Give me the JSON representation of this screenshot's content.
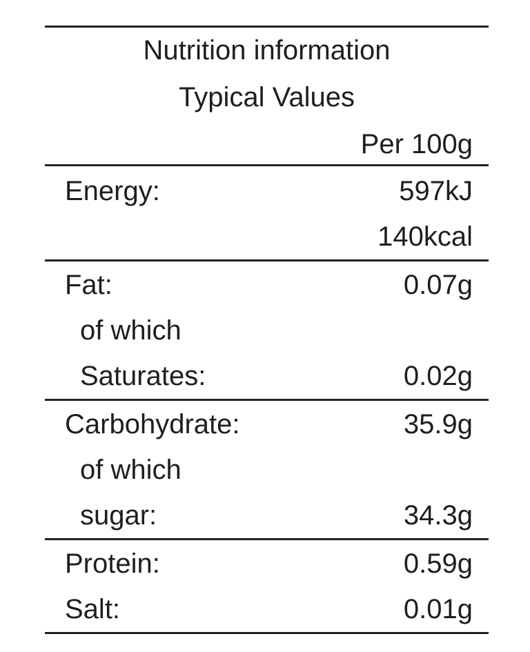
{
  "header": {
    "title": "Nutrition information",
    "subtitle": "Typical Values",
    "column": "Per 100g"
  },
  "sections": [
    {
      "lines": [
        {
          "label": "Energy:",
          "value": "597kJ"
        },
        {
          "value": "140kcal"
        }
      ]
    },
    {
      "lines": [
        {
          "label": "Fat:",
          "value": "0.07g"
        },
        {
          "label": "of which"
        },
        {
          "label": "Saturates:",
          "value": "0.02g"
        }
      ]
    },
    {
      "lines": [
        {
          "label": "Carbohydrate:",
          "value": "35.9g"
        },
        {
          "label": "of which"
        },
        {
          "label": "sugar:",
          "value": "34.3g"
        }
      ]
    },
    {
      "lines": [
        {
          "label": "Protein:",
          "value": "0.59g"
        },
        {
          "label": "Salt:",
          "value": "0.01g"
        }
      ]
    }
  ]
}
